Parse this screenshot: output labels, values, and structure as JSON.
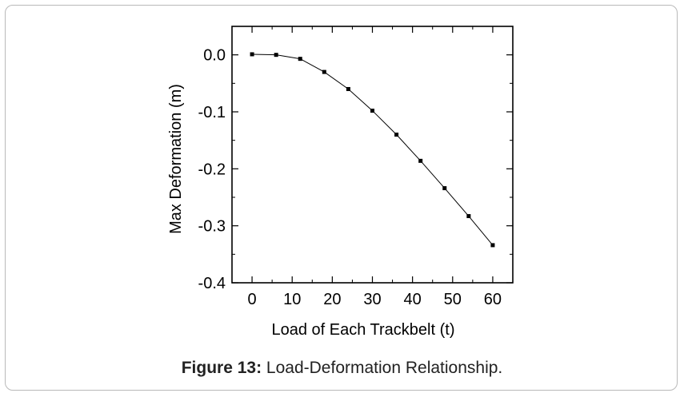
{
  "caption": {
    "label": "Figure 13:",
    "text": " Load-Deformation Relationship."
  },
  "chart_data": {
    "type": "line",
    "title": "",
    "xlabel": "Load of Each Trackbelt (t)",
    "ylabel": "Max Deformation (m)",
    "xlim": [
      -5,
      65
    ],
    "ylim": [
      -0.4,
      0.05
    ],
    "xticks": [
      0,
      10,
      20,
      30,
      40,
      50,
      60
    ],
    "yticks": [
      0.0,
      -0.1,
      -0.2,
      -0.3,
      -0.4
    ],
    "xtick_labels": [
      "0",
      "10",
      "20",
      "30",
      "40",
      "50",
      "60"
    ],
    "ytick_labels": [
      "0.0",
      "-0.1",
      "-0.2",
      "-0.3",
      "-0.4"
    ],
    "grid": false,
    "series": [
      {
        "x": [
          0,
          6,
          12,
          18,
          24,
          30,
          36,
          42,
          48,
          54,
          60
        ],
        "values": [
          0.001,
          0.0,
          -0.007,
          -0.03,
          -0.06,
          -0.098,
          -0.14,
          -0.186,
          -0.234,
          -0.283,
          -0.334
        ]
      }
    ]
  }
}
